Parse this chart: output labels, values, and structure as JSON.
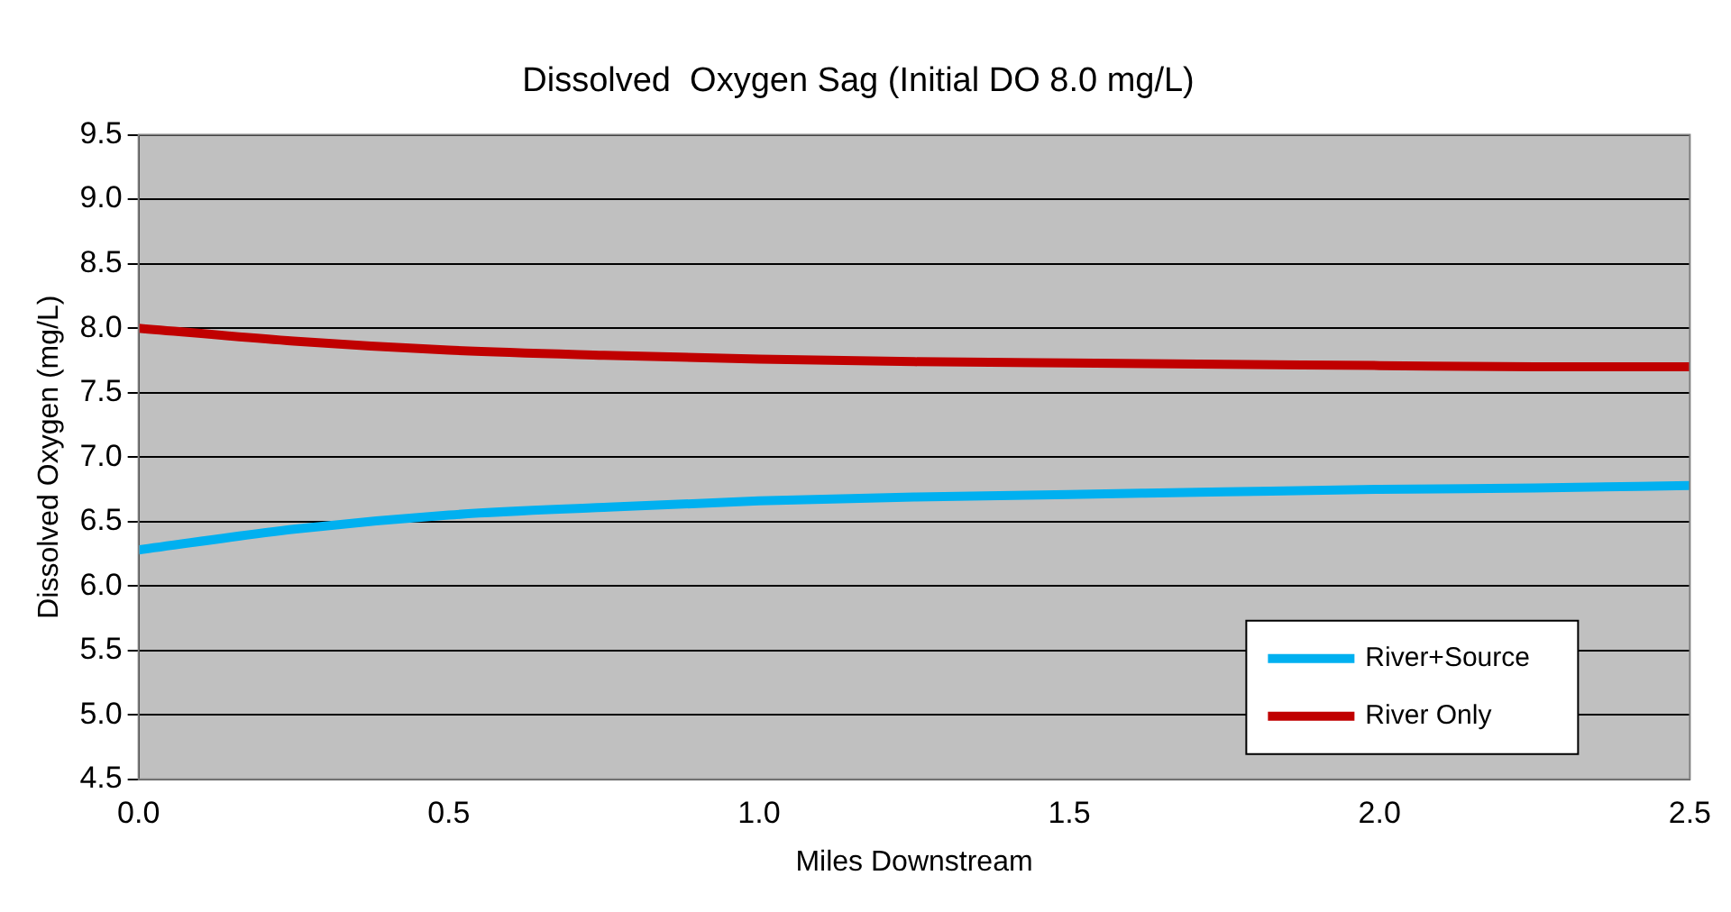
{
  "chart_data": {
    "type": "line",
    "title": "Dissolved  Oxygen Sag (Initial DO 8.0 mg/L)",
    "xlabel": "Miles Downstream",
    "ylabel": "Dissolved Oxygen (mg/L)",
    "x": [
      0,
      0.25,
      0.5,
      0.75,
      1.0,
      1.25,
      1.5,
      1.75,
      2.0,
      2.25,
      2.5
    ],
    "series": [
      {
        "name": "River+Source",
        "color": "#00b0f0",
        "values": [
          6.28,
          6.44,
          6.55,
          6.61,
          6.66,
          6.69,
          6.71,
          6.73,
          6.75,
          6.76,
          6.78
        ]
      },
      {
        "name": "River Only",
        "color": "#c00000",
        "values": [
          8.0,
          7.9,
          7.83,
          7.79,
          7.76,
          7.74,
          7.73,
          7.72,
          7.71,
          7.7,
          7.7
        ]
      }
    ],
    "xlim": [
      0,
      2.5
    ],
    "xticks": [
      {
        "value": 0,
        "label": "0.0"
      },
      0.5,
      {
        "value": 1,
        "label": "1.0"
      },
      1.5,
      {
        "value": 2,
        "label": "2.0"
      },
      2.5
    ],
    "ylim": [
      4.5,
      9.5
    ],
    "yticks": [
      4.5,
      {
        "value": 5,
        "label": "5.0"
      },
      5.5,
      {
        "value": 6,
        "label": "6.0"
      },
      6.5,
      {
        "value": 7,
        "label": "7.0"
      },
      7.5,
      {
        "value": 8,
        "label": "8.0"
      },
      8.5,
      {
        "value": 9,
        "label": "9.0"
      },
      9.5
    ],
    "grid": "y",
    "legend": "bottom right",
    "marker": "none",
    "line_style": "solid"
  }
}
